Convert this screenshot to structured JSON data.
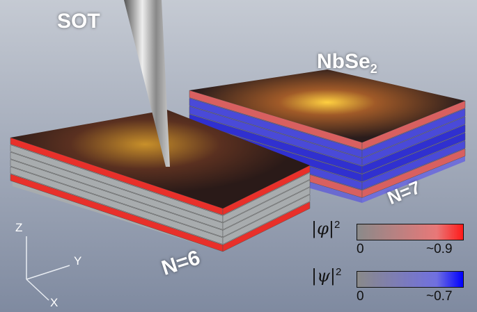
{
  "labels": {
    "probe": "SOT",
    "material": "NbSe",
    "material_sub": "2",
    "left_stack": "N=6",
    "right_stack": "N=7"
  },
  "axes": {
    "z": "Z",
    "y": "Y",
    "x": "X"
  },
  "colorbars": [
    {
      "symbol": "|φ|",
      "power": "2",
      "min": "0",
      "max": "~0.9",
      "color_low": "#8a8a8a",
      "color_high": "#ff1a1a"
    },
    {
      "symbol": "|ψ|",
      "power": "2",
      "min": "0",
      "max": "~0.7",
      "color_low": "#8a8a8a",
      "color_high": "#0000ff"
    }
  ],
  "colors": {
    "red_layer": "#e8302a",
    "grey_layer": "#a8acae",
    "blue_layer": "#4a4ad8",
    "glow": "#ffb020"
  }
}
